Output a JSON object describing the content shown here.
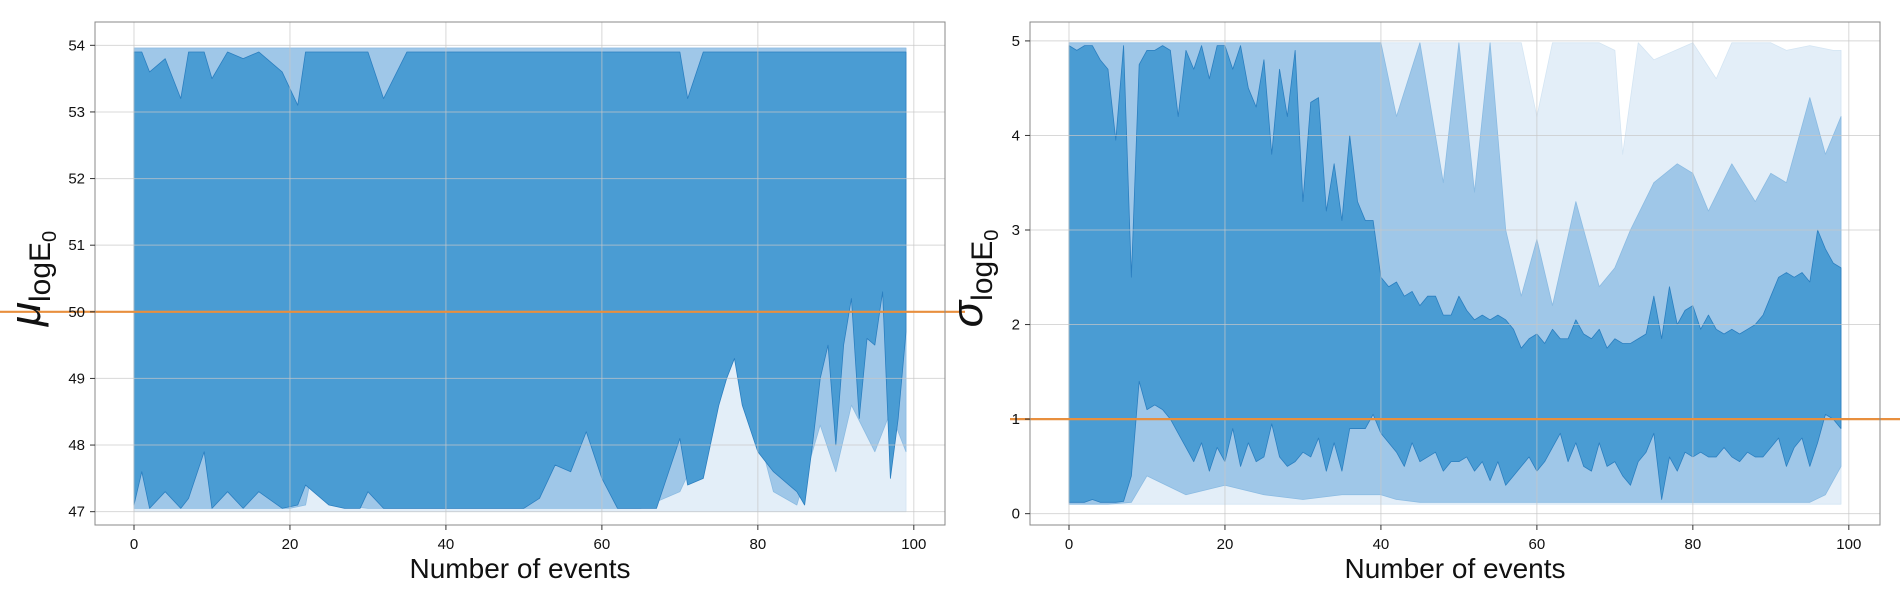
{
  "colors": {
    "band_outer": "#e3eef8",
    "band_mid": "#9fc7e8",
    "band_inner": "#4a9cd3",
    "band_edge": "#2b7fc0",
    "reference_line": "#e88f3e",
    "grid": "#c8c8c8",
    "frame": "#888888"
  },
  "chart_data": [
    {
      "type": "area",
      "xlabel": "Number of events",
      "ylabel": {
        "main": "μ",
        "sub": "log",
        "var": "E",
        "varsub": "0"
      },
      "xlim": [
        -5,
        104
      ],
      "ylim": [
        46.8,
        54.35
      ],
      "xticks": [
        0,
        20,
        40,
        60,
        80,
        100
      ],
      "yticks": [
        47,
        48,
        49,
        50,
        51,
        52,
        53,
        54
      ],
      "grid": true,
      "reference_line": {
        "y": 50,
        "color": "#e88f3e"
      },
      "bands": [
        {
          "level": "outer",
          "x": [
            0,
            10,
            20,
            30,
            40,
            50,
            60,
            70,
            75,
            80,
            85,
            90,
            95,
            99
          ],
          "lower": [
            47.0,
            47.0,
            47.0,
            47.0,
            47.0,
            47.0,
            47.0,
            47.0,
            47.0,
            47.0,
            47.0,
            47.0,
            47.0,
            47.0
          ],
          "upper": [
            53.96,
            53.96,
            53.96,
            53.96,
            53.96,
            53.96,
            53.96,
            53.96,
            53.96,
            53.96,
            53.96,
            53.96,
            53.96,
            53.96
          ]
        },
        {
          "level": "mid",
          "x": [
            0,
            5,
            10,
            15,
            20,
            22,
            25,
            26,
            30,
            35,
            40,
            50,
            55,
            60,
            65,
            70,
            72,
            75,
            76,
            78,
            80,
            82,
            85,
            88,
            90,
            92,
            95,
            97,
            99
          ],
          "lower": [
            47.05,
            47.05,
            47.05,
            47.05,
            47.05,
            47.1,
            48.9,
            47.1,
            47.05,
            47.05,
            47.05,
            47.05,
            47.05,
            47.05,
            47.05,
            47.3,
            47.8,
            48.7,
            52.0,
            49.5,
            48.2,
            47.3,
            47.1,
            48.3,
            47.6,
            48.6,
            47.9,
            48.5,
            47.9
          ],
          "upper": [
            53.96,
            53.96,
            53.96,
            53.96,
            53.96,
            53.96,
            53.96,
            53.96,
            53.96,
            53.96,
            53.96,
            53.96,
            53.96,
            53.96,
            53.96,
            53.96,
            53.96,
            53.96,
            53.96,
            53.96,
            53.96,
            53.96,
            53.96,
            53.96,
            53.96,
            53.96,
            53.96,
            53.96,
            53.96
          ]
        },
        {
          "level": "inner",
          "x": [
            0,
            1,
            2,
            4,
            6,
            7,
            9,
            10,
            12,
            14,
            16,
            19,
            21,
            22,
            25,
            27,
            29,
            30,
            32,
            35,
            40,
            45,
            50,
            52,
            54,
            56,
            58,
            60,
            62,
            65,
            67,
            68,
            70,
            71,
            73,
            75,
            76,
            77,
            78,
            80,
            82,
            84,
            85,
            86,
            87,
            88,
            89,
            90,
            91,
            92,
            93,
            94,
            95,
            96,
            97,
            98,
            99
          ],
          "lower": [
            47.1,
            47.6,
            47.05,
            47.3,
            47.05,
            47.2,
            47.9,
            47.05,
            47.3,
            47.05,
            47.3,
            47.05,
            47.1,
            47.4,
            47.1,
            47.05,
            47.05,
            47.3,
            47.05,
            47.05,
            47.05,
            47.05,
            47.05,
            47.2,
            47.7,
            47.6,
            48.2,
            47.5,
            47.05,
            47.05,
            47.05,
            47.4,
            48.1,
            47.4,
            47.5,
            48.6,
            49.0,
            49.3,
            48.6,
            47.9,
            47.6,
            47.4,
            47.3,
            47.1,
            48.0,
            49.0,
            49.5,
            48.0,
            49.5,
            50.2,
            48.4,
            49.6,
            49.5,
            50.3,
            47.5,
            48.4,
            49.7
          ],
          "upper": [
            53.9,
            53.9,
            53.6,
            53.8,
            53.2,
            53.9,
            53.9,
            53.5,
            53.9,
            53.8,
            53.9,
            53.6,
            53.1,
            53.9,
            53.9,
            53.9,
            53.9,
            53.9,
            53.2,
            53.9,
            53.9,
            53.9,
            53.9,
            53.9,
            53.9,
            53.9,
            53.9,
            53.9,
            53.9,
            53.9,
            53.9,
            53.9,
            53.9,
            53.2,
            53.9,
            53.9,
            53.9,
            53.9,
            53.9,
            53.9,
            53.9,
            53.9,
            53.9,
            53.9,
            53.9,
            53.9,
            53.9,
            53.9,
            53.9,
            53.9,
            53.9,
            53.9,
            53.9,
            53.9,
            53.9,
            53.9,
            53.9
          ]
        }
      ]
    },
    {
      "type": "area",
      "xlabel": "Number of events",
      "ylabel": {
        "main": "σ",
        "sub": "log",
        "var": "E",
        "varsub": "0"
      },
      "xlim": [
        -5,
        104
      ],
      "ylim": [
        -0.12,
        5.2
      ],
      "xticks": [
        0,
        20,
        40,
        60,
        80,
        100
      ],
      "yticks": [
        0,
        1,
        2,
        3,
        4,
        5
      ],
      "grid": true,
      "reference_line": {
        "y": 1,
        "color": "#e88f3e"
      },
      "bands": [
        {
          "level": "outer",
          "x": [
            0,
            10,
            20,
            30,
            40,
            50,
            55,
            58,
            60,
            62,
            65,
            68,
            70,
            71,
            73,
            75,
            80,
            83,
            85,
            88,
            90,
            92,
            95,
            98,
            99
          ],
          "lower": [
            0.1,
            0.1,
            0.1,
            0.1,
            0.1,
            0.1,
            0.1,
            0.1,
            0.1,
            0.1,
            0.1,
            0.1,
            0.1,
            0.1,
            0.1,
            0.1,
            0.1,
            0.1,
            0.1,
            0.1,
            0.1,
            0.1,
            0.1,
            0.1,
            0.1
          ],
          "upper": [
            4.98,
            4.98,
            4.98,
            4.98,
            4.98,
            4.98,
            4.98,
            4.98,
            4.2,
            4.98,
            4.98,
            4.98,
            4.9,
            3.8,
            4.98,
            4.8,
            4.98,
            4.6,
            4.98,
            4.98,
            4.98,
            4.9,
            4.95,
            4.9,
            4.9
          ]
        },
        {
          "level": "mid",
          "x": [
            0,
            5,
            8,
            10,
            15,
            20,
            25,
            30,
            35,
            40,
            42,
            45,
            48,
            50,
            52,
            54,
            56,
            58,
            60,
            62,
            65,
            68,
            70,
            72,
            75,
            78,
            80,
            82,
            85,
            88,
            90,
            92,
            95,
            97,
            99
          ],
          "lower": [
            0.1,
            0.1,
            0.12,
            0.4,
            0.2,
            0.3,
            0.2,
            0.15,
            0.2,
            0.2,
            0.15,
            0.12,
            0.12,
            0.12,
            0.12,
            0.12,
            0.12,
            0.12,
            0.12,
            0.12,
            0.12,
            0.12,
            0.12,
            0.12,
            0.12,
            0.12,
            0.12,
            0.12,
            0.12,
            0.12,
            0.12,
            0.12,
            0.12,
            0.2,
            0.5
          ],
          "upper": [
            4.98,
            4.98,
            4.98,
            4.98,
            4.98,
            4.98,
            4.98,
            4.98,
            4.98,
            4.98,
            4.2,
            4.98,
            3.5,
            4.98,
            3.4,
            4.98,
            3.0,
            2.3,
            2.9,
            2.2,
            3.3,
            2.4,
            2.6,
            3.0,
            3.5,
            3.7,
            3.6,
            3.2,
            3.7,
            3.3,
            3.6,
            3.5,
            4.4,
            3.8,
            4.2
          ]
        },
        {
          "level": "inner",
          "x": [
            0,
            1,
            2,
            3,
            4,
            5,
            6,
            7,
            8,
            9,
            10,
            11,
            12,
            13,
            14,
            15,
            16,
            17,
            18,
            19,
            20,
            21,
            22,
            23,
            24,
            25,
            26,
            27,
            28,
            29,
            30,
            31,
            32,
            33,
            34,
            35,
            36,
            37,
            38,
            39,
            40,
            41,
            42,
            43,
            44,
            45,
            46,
            47,
            48,
            49,
            50,
            51,
            52,
            53,
            54,
            55,
            56,
            57,
            58,
            59,
            60,
            61,
            62,
            63,
            64,
            65,
            66,
            67,
            68,
            69,
            70,
            71,
            72,
            73,
            74,
            75,
            76,
            77,
            78,
            79,
            80,
            81,
            82,
            83,
            84,
            85,
            86,
            87,
            88,
            89,
            90,
            91,
            92,
            93,
            94,
            95,
            96,
            97,
            98,
            99
          ],
          "lower": [
            0.12,
            0.12,
            0.12,
            0.15,
            0.12,
            0.12,
            0.12,
            0.13,
            0.4,
            1.4,
            1.1,
            1.15,
            1.1,
            1.0,
            0.85,
            0.7,
            0.55,
            0.75,
            0.45,
            0.7,
            0.55,
            0.9,
            0.5,
            0.75,
            0.55,
            0.6,
            0.95,
            0.6,
            0.5,
            0.55,
            0.65,
            0.6,
            0.8,
            0.45,
            0.75,
            0.45,
            0.9,
            0.9,
            0.9,
            1.05,
            0.85,
            0.75,
            0.65,
            0.5,
            0.75,
            0.55,
            0.6,
            0.65,
            0.45,
            0.55,
            0.55,
            0.6,
            0.45,
            0.55,
            0.35,
            0.55,
            0.3,
            0.4,
            0.5,
            0.6,
            0.45,
            0.55,
            0.7,
            0.85,
            0.55,
            0.75,
            0.5,
            0.45,
            0.75,
            0.5,
            0.55,
            0.4,
            0.3,
            0.55,
            0.65,
            0.85,
            0.15,
            0.6,
            0.45,
            0.65,
            0.6,
            0.65,
            0.6,
            0.6,
            0.7,
            0.6,
            0.55,
            0.65,
            0.6,
            0.6,
            0.7,
            0.8,
            0.5,
            0.7,
            0.8,
            0.5,
            0.75,
            1.05,
            1.0,
            0.9
          ],
          "upper": [
            4.95,
            4.9,
            4.95,
            4.95,
            4.8,
            4.7,
            3.95,
            4.95,
            2.5,
            4.75,
            4.9,
            4.9,
            4.95,
            4.9,
            4.2,
            4.9,
            4.7,
            4.95,
            4.6,
            4.95,
            4.95,
            4.7,
            4.95,
            4.5,
            4.3,
            4.8,
            3.8,
            4.7,
            4.2,
            4.9,
            3.3,
            4.35,
            4.4,
            3.2,
            3.7,
            3.1,
            4.0,
            3.3,
            3.1,
            3.1,
            2.5,
            2.4,
            2.45,
            2.3,
            2.35,
            2.2,
            2.3,
            2.3,
            2.1,
            2.1,
            2.3,
            2.15,
            2.05,
            2.1,
            2.05,
            2.1,
            2.05,
            1.95,
            1.75,
            1.85,
            1.9,
            1.8,
            1.95,
            1.85,
            1.85,
            2.05,
            1.9,
            1.85,
            1.95,
            1.75,
            1.85,
            1.8,
            1.8,
            1.85,
            1.9,
            2.3,
            1.85,
            2.4,
            2.0,
            2.15,
            2.2,
            1.95,
            2.1,
            1.95,
            1.9,
            1.95,
            1.9,
            1.95,
            2.0,
            2.1,
            2.3,
            2.5,
            2.55,
            2.5,
            2.55,
            2.45,
            3.0,
            2.8,
            2.65,
            2.6
          ]
        }
      ]
    }
  ]
}
